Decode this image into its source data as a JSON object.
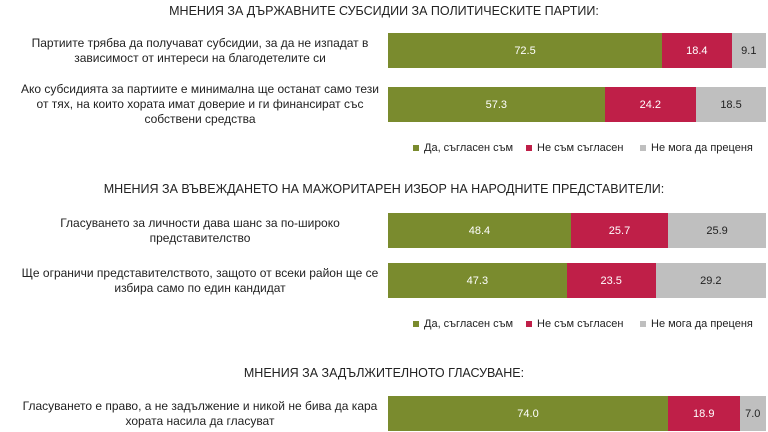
{
  "chart_data": [
    {
      "type": "stacked-bar",
      "title": "МНЕНИЯ ЗА ДЪРЖАВНИТЕ СУБСИДИИ ЗА ПОЛИТИЧЕСКИТЕ ПАРТИИ:",
      "categories": [
        "Партиите трябва да получават субсидии, за да не изпадат в зависимост от интереси на благодетелите си",
        "Ако субсидията за партиите е минимална ще останат само тези от тях, на които хората имат доверие и ги финансират със собствени средства"
      ],
      "series": [
        {
          "name": "Да, съгласен съм",
          "color": "#7a8b2e",
          "values": [
            72.5,
            57.3
          ]
        },
        {
          "name": "Не съм съгласен",
          "color": "#bf1f48",
          "values": [
            18.4,
            24.2
          ]
        },
        {
          "name": "Не мога да преценя",
          "color": "#bfbfbf",
          "values": [
            9.1,
            18.5
          ]
        }
      ],
      "legend": true
    },
    {
      "type": "stacked-bar",
      "title": "МНЕНИЯ ЗА ВЪВЕЖДАНЕТО НА МАЖОРИТАРЕН ИЗБОР НА НАРОДНИТЕ ПРЕДСТАВИТЕЛИ:",
      "categories": [
        "Гласуването за личности дава шанс за по-широко представителство",
        "Ще ограничи представителството, защото от всеки район ще се избира само по един кандидат"
      ],
      "series": [
        {
          "name": "Да, съгласен съм",
          "color": "#7a8b2e",
          "values": [
            48.4,
            47.3
          ]
        },
        {
          "name": "Не съм съгласен",
          "color": "#bf1f48",
          "values": [
            25.7,
            23.5
          ]
        },
        {
          "name": "Не мога да преценя",
          "color": "#bfbfbf",
          "values": [
            25.9,
            29.2
          ]
        }
      ],
      "legend": true
    },
    {
      "type": "stacked-bar",
      "title": "МНЕНИЯ ЗА ЗАДЪЛЖИТЕЛНОТО ГЛАСУВАНЕ:",
      "categories": [
        "Гласуването е право, а не задължение и никой не бива да кара хората насила да гласуват"
      ],
      "series": [
        {
          "color": "#7a8b2e",
          "values": [
            74.0
          ],
          "value_labels": [
            "74.0"
          ]
        },
        {
          "color": "#bf1f48",
          "values": [
            18.9
          ]
        },
        {
          "color": "#bfbfbf",
          "values": [
            7.0
          ],
          "value_labels": [
            "7.0"
          ]
        }
      ],
      "legend": false
    }
  ]
}
